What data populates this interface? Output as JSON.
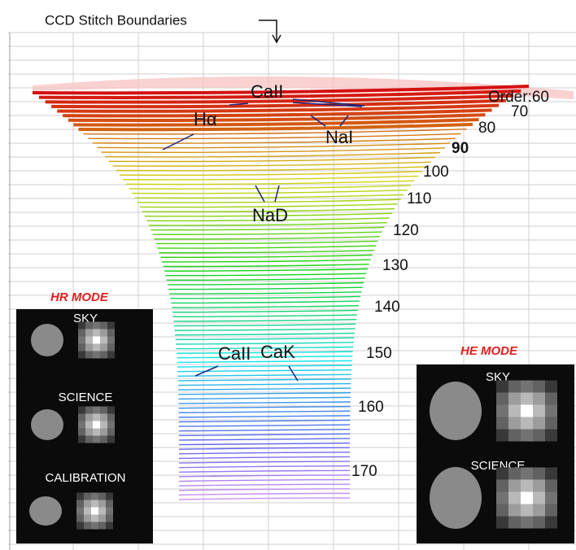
{
  "title": "CCD Stitch Boundaries",
  "order_labels": [
    "Order:60",
    "70",
    "80",
    "90",
    "100",
    "110",
    "120",
    "130",
    "140",
    "150",
    "160",
    "170"
  ],
  "line_labels": [
    "CaII",
    "Hα",
    "NaI",
    "NaD",
    "CaII",
    "CaK"
  ],
  "hr_mode": {
    "title": "HR MODE",
    "fibers": [
      "SKY",
      "SCIENCE",
      "CALIBRATION"
    ]
  },
  "he_mode": {
    "title": "HE MODE",
    "fibers": [
      "SKY",
      "SCIENCE"
    ]
  }
}
